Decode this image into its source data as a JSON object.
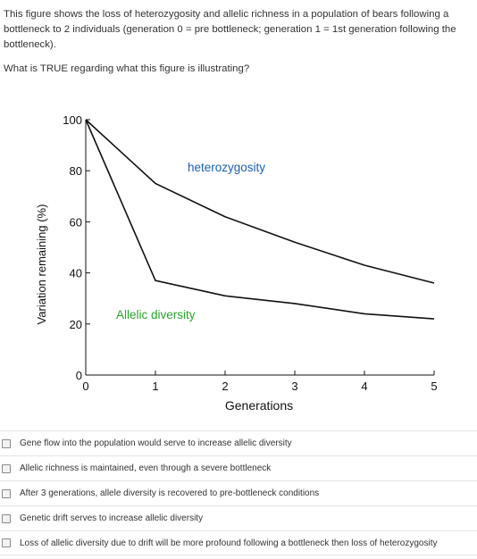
{
  "question": {
    "intro": "This figure shows the loss of heterozygosity and allelic richness in a population of bears following a bottleneck to 2 individuals (generation 0 = pre bottleneck; generation 1 = 1st generation following the bottleneck).",
    "prompt": "What is TRUE regarding what this figure is illustrating?"
  },
  "chart_data": {
    "type": "line",
    "xlabel": "Generations",
    "ylabel": "Variation remaining (%)",
    "x": [
      0,
      1,
      2,
      3,
      4,
      5
    ],
    "xlim": [
      0,
      5
    ],
    "ylim": [
      0,
      100
    ],
    "xticks": [
      0,
      1,
      2,
      3,
      4,
      5
    ],
    "yticks": [
      0,
      20,
      40,
      60,
      80,
      100
    ],
    "series": [
      {
        "name": "heterozygosity",
        "color": "#1a5fb4",
        "points": [
          [
            0,
            100
          ],
          [
            1,
            75
          ],
          [
            2,
            62
          ],
          [
            3,
            52
          ],
          [
            4,
            43
          ],
          [
            5,
            36
          ]
        ]
      },
      {
        "name": "Allelic diversity",
        "color": "#2aa52a",
        "points": [
          [
            0,
            100
          ],
          [
            1,
            37
          ],
          [
            2,
            31
          ],
          [
            3,
            28
          ],
          [
            4,
            24
          ],
          [
            5,
            22
          ]
        ]
      }
    ]
  },
  "options": [
    "Gene flow into the population would serve to increase allelic diversity",
    "Allelic richness is maintained, even through a severe bottleneck",
    "After 3 generations, allele diversity is recovered to pre-bottleneck conditions",
    "Genetic drift serves to increase allelic diversity",
    "Loss of allelic diversity due to drift will be more profound following a bottleneck then loss of heterozygosity"
  ]
}
